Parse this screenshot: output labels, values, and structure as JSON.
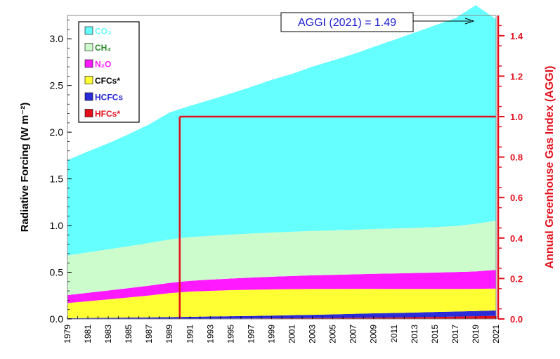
{
  "chart_data": {
    "type": "area",
    "stacked": true,
    "x": [
      1979,
      1981,
      1983,
      1985,
      1987,
      1989,
      1991,
      1993,
      1995,
      1997,
      1999,
      2001,
      2003,
      2005,
      2007,
      2009,
      2011,
      2013,
      2015,
      2017,
      2019,
      2021
    ],
    "x_tick_labels": [
      "1979",
      "1981",
      "1983",
      "1985",
      "1987",
      "1989",
      "1991",
      "1993",
      "1995",
      "1997",
      "1999",
      "2001",
      "2003",
      "2005",
      "2007",
      "2009",
      "2011",
      "2013",
      "2015",
      "2017",
      "2019",
      "2021"
    ],
    "series": [
      {
        "name": "HFCs*",
        "color": "#e3101c",
        "values": [
          0.0,
          0.0,
          0.0,
          0.001,
          0.001,
          0.002,
          0.003,
          0.004,
          0.005,
          0.006,
          0.007,
          0.008,
          0.009,
          0.01,
          0.012,
          0.014,
          0.016,
          0.019,
          0.022,
          0.025,
          0.029,
          0.033
        ]
      },
      {
        "name": "HCFCs",
        "color": "#2b2bd8",
        "values": [
          0.008,
          0.01,
          0.012,
          0.014,
          0.016,
          0.018,
          0.02,
          0.022,
          0.024,
          0.026,
          0.029,
          0.032,
          0.035,
          0.039,
          0.043,
          0.046,
          0.048,
          0.05,
          0.052,
          0.054,
          0.056,
          0.058
        ]
      },
      {
        "name": "CFCs*",
        "color": "#ffff33",
        "values": [
          0.162,
          0.18,
          0.198,
          0.215,
          0.234,
          0.256,
          0.27,
          0.275,
          0.279,
          0.281,
          0.281,
          0.28,
          0.278,
          0.273,
          0.268,
          0.263,
          0.258,
          0.253,
          0.248,
          0.243,
          0.238,
          0.234
        ]
      },
      {
        "name": "N₂O",
        "color": "#ff19ff",
        "values": [
          0.085,
          0.09,
          0.095,
          0.1,
          0.105,
          0.11,
          0.115,
          0.12,
          0.125,
          0.13,
          0.135,
          0.14,
          0.145,
          0.15,
          0.155,
          0.16,
          0.165,
          0.17,
          0.175,
          0.18,
          0.186,
          0.201
        ]
      },
      {
        "name": "CH₄",
        "color": "#ccfbcc",
        "values": [
          0.425,
          0.433,
          0.441,
          0.449,
          0.457,
          0.465,
          0.468,
          0.47,
          0.471,
          0.472,
          0.473,
          0.474,
          0.475,
          0.476,
          0.477,
          0.48,
          0.482,
          0.484,
          0.486,
          0.493,
          0.51,
          0.525
        ]
      },
      {
        "name": "CO₂",
        "color": "#66ffff",
        "values": [
          1.02,
          1.08,
          1.135,
          1.2,
          1.27,
          1.36,
          1.405,
          1.455,
          1.51,
          1.57,
          1.635,
          1.69,
          1.76,
          1.82,
          1.88,
          1.95,
          2.02,
          2.09,
          2.16,
          2.225,
          2.34,
          2.16
        ]
      }
    ],
    "legend": [
      "CO₂",
      "CH₄",
      "N₂O",
      "CFCs*",
      "HCFCs",
      "HFCs*"
    ],
    "legend_colors": {
      "CO₂": "#66ffff",
      "CH₄": "#ccfbcc",
      "N₂O": "#ff19ff",
      "CFCs*": "#ffff33",
      "HCFCs": "#2b2bd8",
      "HFCs*": "#e3101c"
    },
    "legend_text_colors": {
      "CO₂": "#66ffff",
      "CH₄": "#228b22",
      "N₂O": "#ff19ff",
      "CFCs*": "#000000",
      "HCFCs": "#2b2bd8",
      "HFCs*": "#e3101c"
    },
    "legend_position": "top-left",
    "ylabel_left": "Radiative Forcing (W m⁻²)",
    "ylabel_right": "Annual Greenhouse Gas Index (AGGI)",
    "ylim_left": [
      0,
      3.25
    ],
    "yticks_left": [
      "0.0",
      "0.5",
      "1.0",
      "1.5",
      "2.0",
      "2.5",
      "3.0"
    ],
    "ylim_right": [
      0,
      1.5
    ],
    "yticks_right": [
      "0.0",
      "0.2",
      "0.4",
      "0.6",
      "0.8",
      "1.0",
      "1.2",
      "1.4"
    ],
    "reference_year": 1990,
    "reference_aggi": 1.0,
    "annotation": "AGGI (2021) = 1.49",
    "annotation_value": 1.49,
    "colors": {
      "right_axis": "#e3101c",
      "annotation_text": "#1b1bd0",
      "reference_box": "#e3101c"
    }
  }
}
